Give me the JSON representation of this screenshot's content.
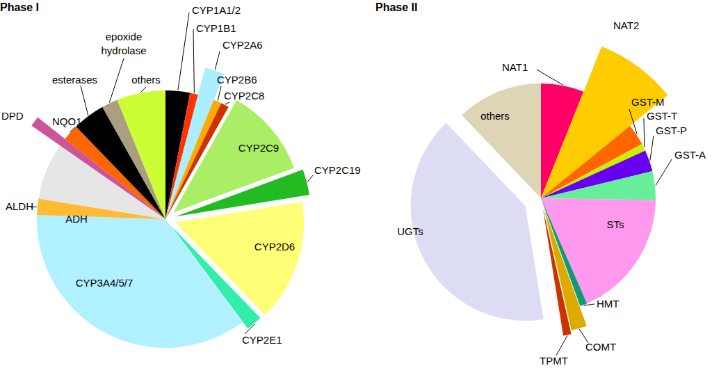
{
  "chart_data": [
    {
      "type": "pie",
      "title": "Phase I",
      "categories": [
        "CYP1A1/2",
        "CYP1B1",
        "CYP2A6",
        "CYP2B6",
        "CYP2C8",
        "CYP2C9",
        "CYP2C19",
        "CYP2D6",
        "CYP2E1",
        "CYP3A4/5/7",
        "ALDH",
        "ADH",
        "DPD",
        "NQO1",
        "esterases",
        "epoxide hydrolase",
        "others"
      ],
      "values": [
        3,
        1,
        2,
        1,
        1,
        11,
        3,
        15,
        2,
        35,
        2,
        7,
        1,
        2,
        4,
        2,
        6
      ],
      "colors": [
        "#000000",
        "#ff3300",
        "#aaeeff",
        "#ffaa00",
        "#cc3300",
        "#aaee66",
        "#22bb22",
        "#ffff77",
        "#33eeaa",
        "#b0f0ff",
        "#ffbb33",
        "#e6e6e6",
        "#cc5599",
        "#ff6600",
        "#000000",
        "#aaa080",
        "#ccff33"
      ]
    },
    {
      "type": "pie",
      "title": "Phase II",
      "categories": [
        "NAT1",
        "NAT2",
        "GST-M",
        "GST-T",
        "GST-P",
        "GST-A",
        "STs",
        "HMT",
        "COMT",
        "TPMT",
        "UGTs",
        "others"
      ],
      "values": [
        6,
        8,
        3,
        1,
        3,
        4,
        18,
        1,
        2,
        1,
        40,
        12
      ],
      "colors": [
        "#ff0066",
        "#ffcc00",
        "#ff6600",
        "#ccee00",
        "#6600ee",
        "#66ee99",
        "#ff99ee",
        "#119977",
        "#ddaa00",
        "#cc3300",
        "#dcdcf5",
        "#ddd5b5"
      ]
    }
  ]
}
